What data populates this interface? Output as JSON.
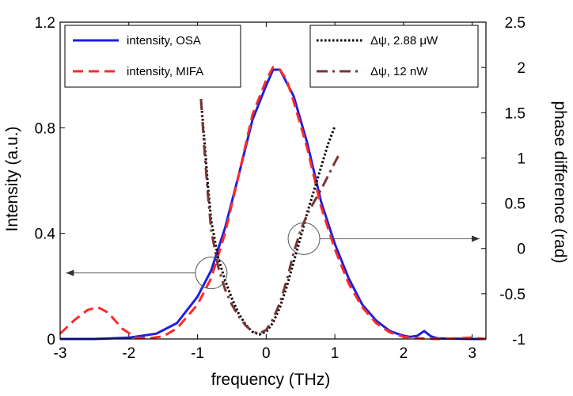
{
  "chart_data": {
    "type": "line",
    "xlabel": "frequency (THz)",
    "ylabel_left": "Intensity (a.u.)",
    "ylabel_right": "phase difference (rad)",
    "xlim": [
      -3,
      3.2
    ],
    "ylim_left": [
      0,
      1.2
    ],
    "ylim_right": [
      -1,
      2.5
    ],
    "x_ticks": [
      -3,
      -2,
      -1,
      0,
      1,
      2,
      3
    ],
    "x_tick_labels": [
      "-3",
      "-2",
      "-1",
      "0",
      "1",
      "2",
      "3"
    ],
    "y_left_ticks": [
      0,
      0.4,
      0.8,
      1.2
    ],
    "y_left_tick_labels": [
      "0",
      "0.4",
      "0.8",
      "1.2"
    ],
    "y_right_ticks": [
      -1,
      -0.5,
      0,
      0.5,
      1,
      1.5,
      2,
      2.5
    ],
    "y_right_tick_labels": [
      "-1",
      "-0.5",
      "0",
      "0.5",
      "1",
      "1.5",
      "2",
      "2.5"
    ],
    "legend_left_placement": "top-left",
    "legend_right_placement": "top-right",
    "series": [
      {
        "name": "intensity, OSA",
        "axis": "left",
        "color": "#1f1fe0",
        "style": "solid",
        "x": [
          -3,
          -2.5,
          -2.0,
          -1.6,
          -1.3,
          -1.0,
          -0.8,
          -0.6,
          -0.4,
          -0.2,
          0,
          0.1,
          0.2,
          0.3,
          0.4,
          0.6,
          0.8,
          1.0,
          1.2,
          1.4,
          1.6,
          1.8,
          2.0,
          2.1,
          2.2,
          2.3,
          2.4,
          2.5,
          3.0,
          3.2
        ],
        "y": [
          0,
          0,
          0.005,
          0.02,
          0.06,
          0.16,
          0.26,
          0.42,
          0.62,
          0.83,
          0.96,
          1.02,
          1.02,
          0.97,
          0.92,
          0.74,
          0.52,
          0.36,
          0.23,
          0.13,
          0.07,
          0.03,
          0.012,
          0.008,
          0.012,
          0.03,
          0.01,
          0.002,
          0,
          0
        ]
      },
      {
        "name": "intensity, MIFA",
        "axis": "left",
        "color": "#ff2a2a",
        "style": "dashed",
        "x": [
          -3,
          -2.8,
          -2.6,
          -2.45,
          -2.3,
          -2.1,
          -1.9,
          -1.7,
          -1.5,
          -1.3,
          -1.0,
          -0.8,
          -0.6,
          -0.4,
          -0.2,
          0,
          0.1,
          0.2,
          0.3,
          0.4,
          0.6,
          0.8,
          1.0,
          1.2,
          1.4,
          1.6,
          1.8,
          2.0,
          2.2,
          2.5,
          3.0,
          3.2
        ],
        "y": [
          0.02,
          0.07,
          0.11,
          0.12,
          0.1,
          0.04,
          0.005,
          0.003,
          0.01,
          0.04,
          0.13,
          0.23,
          0.4,
          0.62,
          0.85,
          0.98,
          1.03,
          1.02,
          0.98,
          0.9,
          0.72,
          0.5,
          0.34,
          0.21,
          0.12,
          0.06,
          0.025,
          0.008,
          0.003,
          0,
          0.005,
          0
        ]
      },
      {
        "name": "Δψ, 2.88 μW",
        "axis": "right",
        "color": "#000000",
        "style": "dotted",
        "x": [
          -0.95,
          -0.9,
          -0.85,
          -0.8,
          -0.7,
          -0.6,
          -0.5,
          -0.4,
          -0.3,
          -0.2,
          -0.1,
          0,
          0.1,
          0.2,
          0.3,
          0.4,
          0.5,
          0.6,
          0.7,
          0.8,
          0.9,
          1.0
        ],
        "y": [
          1.65,
          1.2,
          0.7,
          0.3,
          -0.1,
          -0.35,
          -0.55,
          -0.72,
          -0.84,
          -0.92,
          -0.95,
          -0.92,
          -0.82,
          -0.65,
          -0.42,
          -0.15,
          0.12,
          0.4,
          0.65,
          0.9,
          1.15,
          1.35
        ]
      },
      {
        "name": "Δψ, 12 nW",
        "axis": "right",
        "color": "#7a3535",
        "style": "dashdot",
        "x": [
          -0.95,
          -0.9,
          -0.85,
          -0.8,
          -0.7,
          -0.6,
          -0.5,
          -0.4,
          -0.3,
          -0.2,
          -0.1,
          0,
          0.1,
          0.2,
          0.3,
          0.4,
          0.5,
          0.6,
          0.7,
          0.8,
          0.9,
          1.0,
          1.05
        ],
        "y": [
          1.65,
          1.1,
          0.6,
          0.2,
          -0.2,
          -0.45,
          -0.62,
          -0.75,
          -0.85,
          -0.92,
          -0.94,
          -0.9,
          -0.78,
          -0.6,
          -0.35,
          -0.05,
          0.2,
          0.38,
          0.52,
          0.65,
          0.8,
          0.95,
          1.02
        ]
      }
    ],
    "annotations": [
      {
        "type": "circle-arrow",
        "circle_x": -0.8,
        "circle_y_left": 0.25,
        "arrow_to_x": -2.95,
        "direction": "left",
        "meaning": "intensity axis"
      },
      {
        "type": "circle-arrow",
        "circle_x": 0.55,
        "circle_y_left": 0.38,
        "arrow_to_x": 3.2,
        "direction": "right",
        "meaning": "phase axis"
      }
    ]
  }
}
